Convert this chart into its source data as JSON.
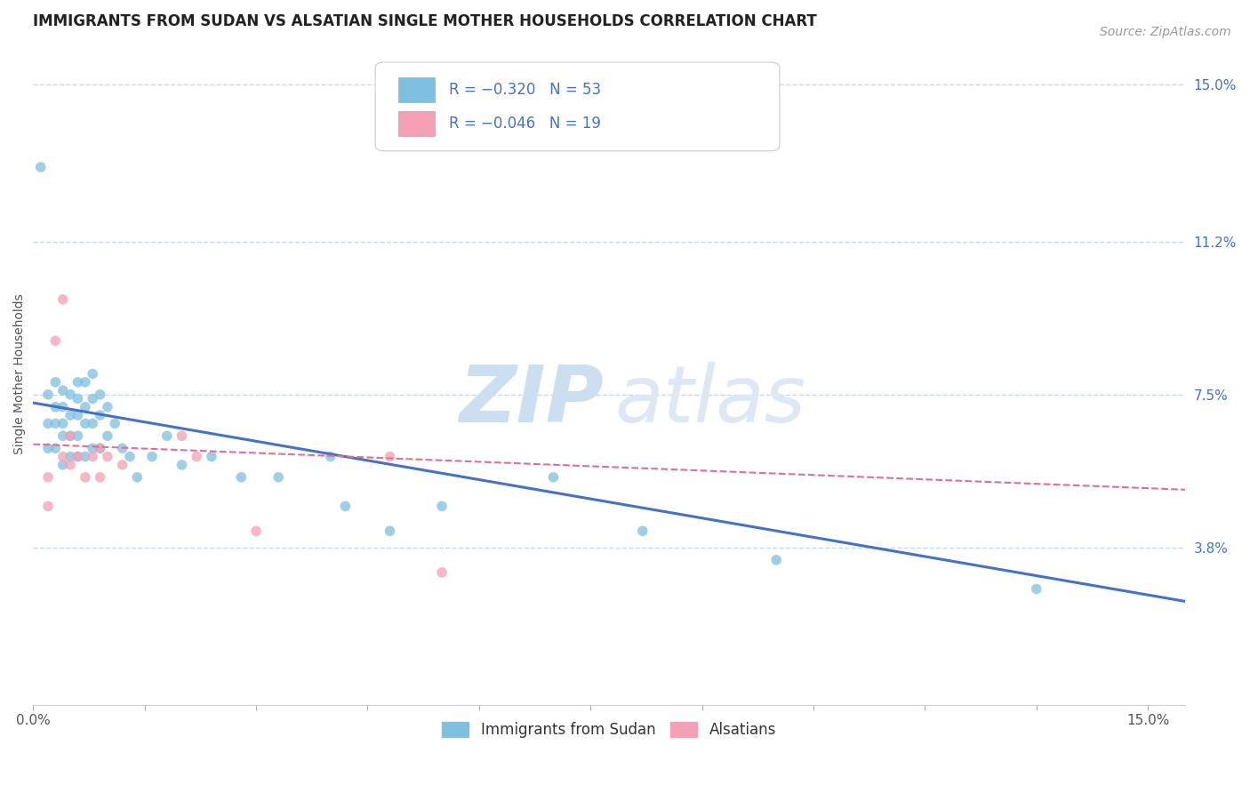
{
  "title": "IMMIGRANTS FROM SUDAN VS ALSATIAN SINGLE MOTHER HOUSEHOLDS CORRELATION CHART",
  "source": "Source: ZipAtlas.com",
  "ylabel": "Single Mother Households",
  "blue_color": "#7fbfdf",
  "pink_color": "#f4a0b5",
  "trend_blue_color": "#4472c4",
  "trend_pink_color": "#e07090",
  "grid_color": "#c8d8ea",
  "xlim": [
    0.0,
    0.155
  ],
  "ylim": [
    0.0,
    0.16
  ],
  "y_ticks": [
    0.038,
    0.075,
    0.112,
    0.15
  ],
  "y_tick_labels": [
    "3.8%",
    "7.5%",
    "11.2%",
    "15.0%"
  ],
  "blue_scatter_x": [
    0.001,
    0.002,
    0.002,
    0.002,
    0.003,
    0.003,
    0.003,
    0.003,
    0.004,
    0.004,
    0.004,
    0.004,
    0.004,
    0.005,
    0.005,
    0.005,
    0.005,
    0.006,
    0.006,
    0.006,
    0.006,
    0.006,
    0.007,
    0.007,
    0.007,
    0.007,
    0.008,
    0.008,
    0.008,
    0.008,
    0.009,
    0.009,
    0.009,
    0.01,
    0.01,
    0.011,
    0.012,
    0.013,
    0.014,
    0.016,
    0.018,
    0.02,
    0.024,
    0.028,
    0.033,
    0.04,
    0.042,
    0.048,
    0.055,
    0.07,
    0.082,
    0.1,
    0.135
  ],
  "blue_scatter_y": [
    0.13,
    0.075,
    0.068,
    0.062,
    0.078,
    0.072,
    0.068,
    0.062,
    0.076,
    0.072,
    0.068,
    0.065,
    0.058,
    0.075,
    0.07,
    0.065,
    0.06,
    0.078,
    0.074,
    0.07,
    0.065,
    0.06,
    0.078,
    0.072,
    0.068,
    0.06,
    0.08,
    0.074,
    0.068,
    0.062,
    0.075,
    0.07,
    0.062,
    0.072,
    0.065,
    0.068,
    0.062,
    0.06,
    0.055,
    0.06,
    0.065,
    0.058,
    0.06,
    0.055,
    0.055,
    0.06,
    0.048,
    0.042,
    0.048,
    0.055,
    0.042,
    0.035,
    0.028
  ],
  "pink_scatter_x": [
    0.002,
    0.002,
    0.003,
    0.004,
    0.004,
    0.005,
    0.005,
    0.006,
    0.007,
    0.008,
    0.009,
    0.009,
    0.01,
    0.012,
    0.02,
    0.022,
    0.03,
    0.048,
    0.055
  ],
  "pink_scatter_y": [
    0.055,
    0.048,
    0.088,
    0.098,
    0.06,
    0.065,
    0.058,
    0.06,
    0.055,
    0.06,
    0.062,
    0.055,
    0.06,
    0.058,
    0.065,
    0.06,
    0.042,
    0.06,
    0.032
  ],
  "blue_trend_x": [
    0.0,
    0.155
  ],
  "blue_trend_y": [
    0.073,
    0.025
  ],
  "pink_trend_x": [
    0.0,
    0.155
  ],
  "pink_trend_y": [
    0.063,
    0.052
  ],
  "title_fontsize": 12,
  "axis_label_fontsize": 10,
  "tick_fontsize": 11,
  "source_fontsize": 10,
  "legend_fontsize": 12
}
